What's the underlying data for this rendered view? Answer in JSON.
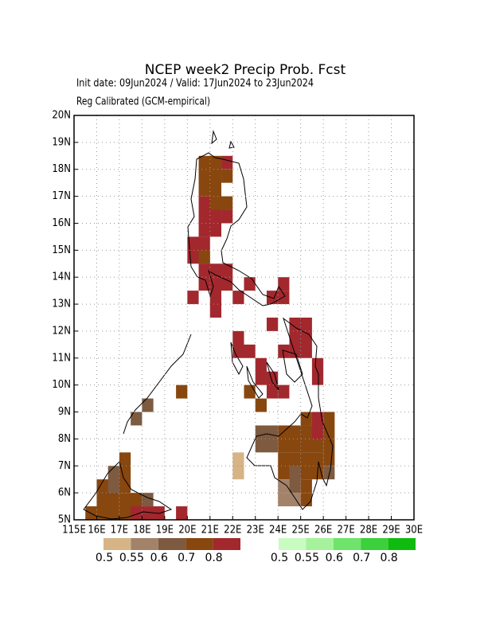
{
  "chart_data": {
    "type": "grid-map",
    "title": "NCEP week2 Precip Prob. Fcst",
    "subtitle": "Init date: 09Jun2024 / Valid: 17Jun2024 to 23Jun2024",
    "note": "Reg Calibrated (GCM-empirical)",
    "xlim": [
      115,
      130
    ],
    "ylim": [
      5,
      20
    ],
    "xticks": [
      {
        "value": 115,
        "label": "115E"
      },
      {
        "value": 116,
        "label": "16E"
      },
      {
        "value": 117,
        "label": "17E"
      },
      {
        "value": 118,
        "label": "18E"
      },
      {
        "value": 119,
        "label": "19E"
      },
      {
        "value": 120,
        "label": "20E"
      },
      {
        "value": 121,
        "label": "21E"
      },
      {
        "value": 122,
        "label": "22E"
      },
      {
        "value": 123,
        "label": "23E"
      },
      {
        "value": 124,
        "label": "24E"
      },
      {
        "value": 125,
        "label": "25E"
      },
      {
        "value": 126,
        "label": "26E"
      },
      {
        "value": 127,
        "label": "27E"
      },
      {
        "value": 128,
        "label": "28E"
      },
      {
        "value": 129,
        "label": "29E"
      },
      {
        "value": 130,
        "label": "30E"
      }
    ],
    "yticks": [
      {
        "value": 5,
        "label": "5N"
      },
      {
        "value": 6,
        "label": "6N"
      },
      {
        "value": 7,
        "label": "7N"
      },
      {
        "value": 8,
        "label": "8N"
      },
      {
        "value": 9,
        "label": "9N"
      },
      {
        "value": 10,
        "label": "10N"
      },
      {
        "value": 11,
        "label": "11N"
      },
      {
        "value": 12,
        "label": "12N"
      },
      {
        "value": 13,
        "label": "13N"
      },
      {
        "value": 14,
        "label": "14N"
      },
      {
        "value": 15,
        "label": "15N"
      },
      {
        "value": 16,
        "label": "16N"
      },
      {
        "value": 17,
        "label": "17N"
      },
      {
        "value": 18,
        "label": "18N"
      },
      {
        "value": 19,
        "label": "19N"
      },
      {
        "value": 20,
        "label": "20N"
      }
    ],
    "grid": true,
    "legends": [
      {
        "colors": [
          "#d6b485",
          "#a3826a",
          "#7d5a40",
          "#88470f",
          "#a2282e"
        ],
        "labels": [
          0.5,
          0.55,
          0.6,
          0.7,
          0.8
        ]
      },
      {
        "colors": [
          "#c8fcc0",
          "#a6f29c",
          "#6ee46a",
          "#3cd03c",
          "#10bb10"
        ],
        "labels": [
          0.5,
          0.55,
          0.6,
          0.7,
          0.8
        ]
      }
    ],
    "cells": [
      [
        120.5,
        17,
        121.5,
        18.5,
        3
      ],
      [
        121.5,
        17.5,
        122,
        18,
        3
      ],
      [
        121.5,
        18,
        122,
        18.5,
        4
      ],
      [
        120.5,
        15.5,
        121.5,
        17,
        4
      ],
      [
        121,
        16.5,
        122,
        17,
        3
      ],
      [
        121.5,
        16,
        122,
        16.5,
        4
      ],
      [
        120,
        14.5,
        121,
        15.5,
        4
      ],
      [
        120.5,
        14.5,
        121,
        15,
        3
      ],
      [
        120.5,
        13.5,
        122,
        14.5,
        4
      ],
      [
        122.5,
        13.5,
        123,
        14,
        4
      ],
      [
        120,
        13,
        120.5,
        13.5,
        4
      ],
      [
        121,
        12.5,
        121.5,
        14,
        4
      ],
      [
        122,
        13,
        122.5,
        13.5,
        4
      ],
      [
        123.5,
        13,
        124.5,
        13.5,
        4
      ],
      [
        124,
        13.5,
        124.5,
        14,
        4
      ],
      [
        122,
        11,
        122.5,
        12,
        4
      ],
      [
        122.5,
        11,
        123,
        11.5,
        4
      ],
      [
        123.5,
        12,
        124,
        12.5,
        4
      ],
      [
        124.5,
        11,
        125.5,
        12.5,
        4
      ],
      [
        124,
        11,
        124.5,
        11.5,
        4
      ],
      [
        123,
        10,
        123.5,
        11,
        4
      ],
      [
        123.5,
        9.5,
        124,
        10.5,
        4
      ],
      [
        125.5,
        10,
        126,
        11,
        4
      ],
      [
        124,
        9.5,
        124.5,
        10,
        4
      ],
      [
        122.5,
        9.5,
        123,
        10,
        3
      ],
      [
        123,
        9,
        123.5,
        9.5,
        3
      ],
      [
        119.5,
        9.5,
        120,
        10,
        3
      ],
      [
        118,
        9,
        118.5,
        9.5,
        2
      ],
      [
        117.5,
        8.5,
        118,
        9,
        2
      ],
      [
        123,
        7.5,
        124,
        8.5,
        2
      ],
      [
        124,
        7.5,
        126,
        8.5,
        3
      ],
      [
        125,
        8.5,
        125.5,
        9,
        3
      ],
      [
        125.5,
        8,
        126,
        9,
        4
      ],
      [
        126,
        7,
        126.5,
        9,
        3
      ],
      [
        124,
        6.5,
        126,
        7.5,
        3
      ],
      [
        124,
        6,
        124.5,
        6.5,
        1
      ],
      [
        124,
        5.5,
        125,
        6,
        1
      ],
      [
        124.5,
        6,
        125,
        7,
        2
      ],
      [
        125,
        6,
        125.5,
        6.5,
        3
      ],
      [
        125,
        5.5,
        125.5,
        6,
        3
      ],
      [
        126,
        6.5,
        126.5,
        7,
        2
      ],
      [
        122,
        6.5,
        122.5,
        7.5,
        0
      ],
      [
        116,
        5,
        117,
        6.5,
        3
      ],
      [
        115.5,
        5,
        116,
        5.5,
        3
      ],
      [
        116.5,
        6,
        117,
        7,
        2
      ],
      [
        117,
        6,
        117.5,
        7.5,
        3
      ],
      [
        117,
        5,
        118,
        6,
        3
      ],
      [
        117.5,
        5,
        119,
        5.5,
        4
      ],
      [
        118,
        5.5,
        118.5,
        6,
        2
      ],
      [
        119.5,
        5,
        120,
        5.5,
        4
      ]
    ]
  }
}
